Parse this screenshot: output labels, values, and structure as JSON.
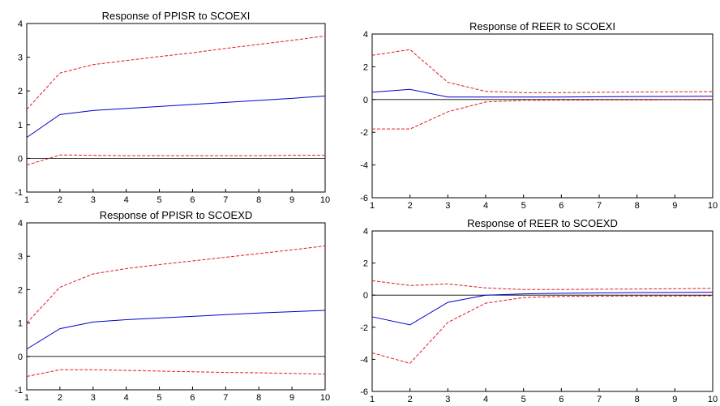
{
  "colors": {
    "response": "#0000cc",
    "band": "#e31a1c",
    "zero": "#000000"
  },
  "chart_data": [
    {
      "type": "line",
      "title": "Response of PPISR to SCOEXI",
      "x": [
        1,
        2,
        3,
        4,
        5,
        6,
        7,
        8,
        9,
        10
      ],
      "ylim": [
        -1,
        4
      ],
      "yticks": [
        -1,
        0,
        1,
        2,
        3,
        4
      ],
      "series": [
        {
          "role": "response",
          "values": [
            0.62,
            1.3,
            1.42,
            1.48,
            1.54,
            1.6,
            1.66,
            1.72,
            1.78,
            1.85
          ]
        },
        {
          "role": "upper",
          "values": [
            1.45,
            2.53,
            2.78,
            2.9,
            3.02,
            3.13,
            3.26,
            3.38,
            3.5,
            3.63
          ]
        },
        {
          "role": "lower",
          "values": [
            -0.2,
            0.1,
            0.09,
            0.08,
            0.08,
            0.08,
            0.08,
            0.08,
            0.09,
            0.09
          ]
        }
      ]
    },
    {
      "type": "line",
      "title": "Response of REER to SCOEXI",
      "x": [
        1,
        2,
        3,
        4,
        5,
        6,
        7,
        8,
        9,
        10
      ],
      "ylim": [
        -6,
        4
      ],
      "yticks": [
        -6,
        -4,
        -2,
        0,
        2,
        4
      ],
      "series": [
        {
          "role": "response",
          "values": [
            0.45,
            0.62,
            0.15,
            0.15,
            0.15,
            0.15,
            0.17,
            0.18,
            0.19,
            0.2
          ]
        },
        {
          "role": "upper",
          "values": [
            2.7,
            3.05,
            1.05,
            0.5,
            0.42,
            0.42,
            0.44,
            0.46,
            0.47,
            0.48
          ]
        },
        {
          "role": "lower",
          "values": [
            -1.8,
            -1.8,
            -0.75,
            -0.15,
            -0.05,
            -0.04,
            -0.03,
            -0.03,
            -0.02,
            -0.02
          ]
        }
      ]
    },
    {
      "type": "line",
      "title": "Response of PPISR to SCOEXD",
      "x": [
        1,
        2,
        3,
        4,
        5,
        6,
        7,
        8,
        9,
        10
      ],
      "ylim": [
        -1,
        4
      ],
      "yticks": [
        -1,
        0,
        1,
        2,
        3,
        4
      ],
      "series": [
        {
          "role": "response",
          "values": [
            0.22,
            0.83,
            1.03,
            1.1,
            1.15,
            1.2,
            1.25,
            1.3,
            1.34,
            1.38
          ]
        },
        {
          "role": "upper",
          "values": [
            1.0,
            2.07,
            2.47,
            2.63,
            2.75,
            2.86,
            2.97,
            3.08,
            3.19,
            3.31
          ]
        },
        {
          "role": "lower",
          "values": [
            -0.6,
            -0.4,
            -0.4,
            -0.42,
            -0.44,
            -0.46,
            -0.48,
            -0.49,
            -0.51,
            -0.53
          ]
        }
      ]
    },
    {
      "type": "line",
      "title": "Response of REER to SCOEXD",
      "x": [
        1,
        2,
        3,
        4,
        5,
        6,
        7,
        8,
        9,
        10
      ],
      "ylim": [
        -6,
        4
      ],
      "yticks": [
        -6,
        -4,
        -2,
        0,
        2,
        4
      ],
      "series": [
        {
          "role": "response",
          "values": [
            -1.35,
            -1.85,
            -0.45,
            0.0,
            0.08,
            0.12,
            0.14,
            0.16,
            0.17,
            0.18
          ]
        },
        {
          "role": "upper",
          "values": [
            0.9,
            0.6,
            0.7,
            0.45,
            0.35,
            0.35,
            0.37,
            0.38,
            0.4,
            0.42
          ]
        },
        {
          "role": "lower",
          "values": [
            -3.6,
            -4.25,
            -1.7,
            -0.5,
            -0.15,
            -0.08,
            -0.06,
            -0.05,
            -0.05,
            -0.04
          ]
        }
      ]
    }
  ]
}
